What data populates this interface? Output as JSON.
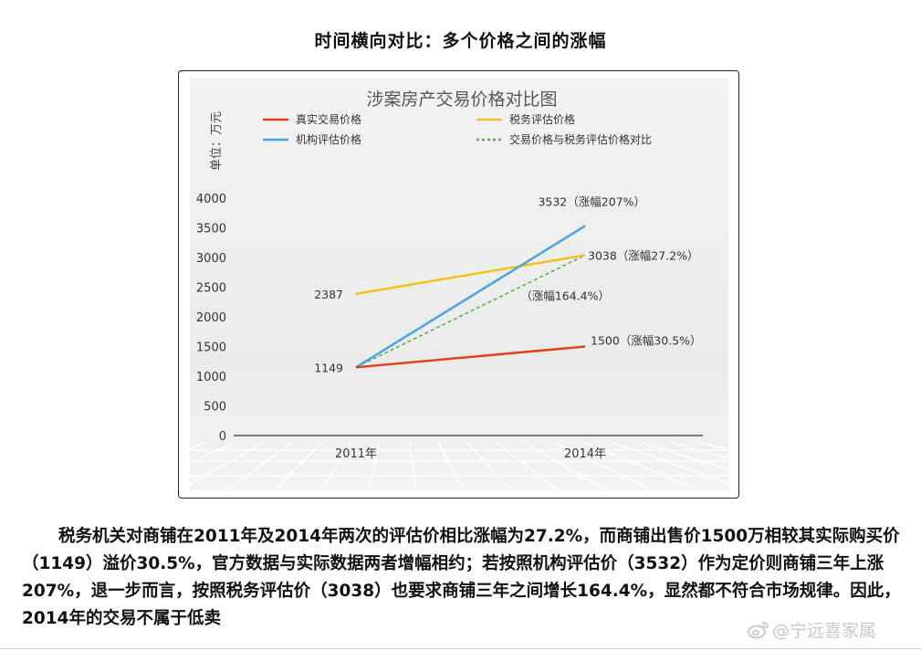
{
  "page_heading": "时间横向对比：多个价格之间的涨幅",
  "chart_data": {
    "type": "line",
    "title": "涉案房产交易价格对比图",
    "ylabel": "单位：万元",
    "ylim": [
      0,
      4000
    ],
    "yticks": [
      0,
      500,
      1000,
      1500,
      2000,
      2500,
      3000,
      3500,
      4000
    ],
    "categories": [
      "2011年",
      "2014年"
    ],
    "legend_position": "top",
    "grid": false,
    "series": [
      {
        "name": "真实交易价格",
        "values": [
          1149,
          1500
        ],
        "color": "#e2401c",
        "dashed": false,
        "labels": [
          "1149",
          "1500（涨幅30.5%）"
        ]
      },
      {
        "name": "税务评估价格",
        "values": [
          2387,
          3038
        ],
        "color": "#f5c11c",
        "dashed": false,
        "labels": [
          "2387",
          "3038（涨幅27.2%）"
        ]
      },
      {
        "name": "机构评估价格",
        "values": [
          1149,
          3532
        ],
        "color": "#4aa3e6",
        "dashed": false,
        "labels": [
          "",
          "3532（涨幅207%）"
        ]
      },
      {
        "name": "交易价格与税务评估价格对比",
        "values": [
          1149,
          3038
        ],
        "color": "#5aa84a",
        "dashed": true,
        "labels": [
          "",
          "（涨幅164.4%）"
        ]
      }
    ]
  },
  "paragraph": "税务机关对商铺在2011年及2014年两次的评估价相比涨幅为27.2%，而商铺出售价1500万相较其实际购买价（1149）溢价30.5%，官方数据与实际数据两者增幅相约；若按照机构评估价（3532）作为定价则商铺三年上涨207%，退一步而言，按照税务评估价（3038）也要求商铺三年之间增长164.4%，显然都不符合市场规律。因此，2014年的交易不属于低卖",
  "watermark": "@宁远喜家属"
}
